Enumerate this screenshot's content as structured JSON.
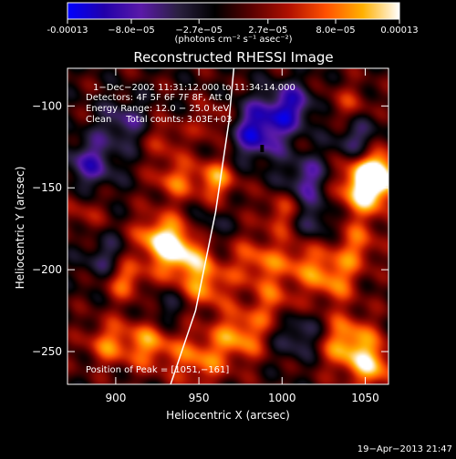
{
  "chart_data": {
    "type": "heatmap",
    "title": "Reconstructed RHESSI Image",
    "xlabel": "Heliocentric X (arcsec)",
    "ylabel": "Heliocentric Y (arcsec)",
    "xlim": [
      871,
      1064
    ],
    "ylim": [
      -270,
      -77
    ],
    "x_ticks": [
      900,
      950,
      1000,
      1050
    ],
    "y_ticks": [
      -100,
      -150,
      -200,
      -250
    ],
    "colorbar": {
      "ticks": [
        "-0.00013",
        "−8.0e−05",
        "−2.7e−05",
        "2.7e−05",
        "8.0e−05",
        "0.00013"
      ],
      "values": [
        -0.00013,
        -8e-05,
        -2.7e-05,
        2.7e-05,
        8e-05,
        0.00013
      ],
      "units_label": "(photons cm⁻² s⁻¹ asec⁻²)",
      "colormap_stops": [
        "#0000ff",
        "#2200aa",
        "#5a1aa8",
        "#2a2040",
        "#000000",
        "#5a0000",
        "#b01000",
        "#ff5000",
        "#ffb000",
        "#ffffff"
      ]
    },
    "annotations": [
      "1−Dec−2002 11:31:12.000 to 11:34:14.000",
      "Detectors: 4F 5F 6F 7F 8F, Att 0",
      "Energy Range: 12.0 − 25.0 keV",
      "Clean     Total counts: 3.03E+03"
    ],
    "peak_label": "Position of Peak = [1051,−161]",
    "peak": [
      1051,
      -161
    ],
    "footer_date": "19−Apr−2013 21:47",
    "blobs": [
      {
        "x": 940,
        "y": -190,
        "amp": 0.9,
        "s": 12
      },
      {
        "x": 925,
        "y": -180,
        "amp": 0.7,
        "s": 10
      },
      {
        "x": 955,
        "y": -210,
        "amp": 0.6,
        "s": 10
      },
      {
        "x": 905,
        "y": -205,
        "amp": 0.7,
        "s": 9
      },
      {
        "x": 895,
        "y": -245,
        "amp": 0.55,
        "s": 10
      },
      {
        "x": 920,
        "y": -245,
        "amp": 0.65,
        "s": 11
      },
      {
        "x": 950,
        "y": -255,
        "amp": 0.6,
        "s": 12
      },
      {
        "x": 975,
        "y": -240,
        "amp": 0.7,
        "s": 11
      },
      {
        "x": 995,
        "y": -220,
        "amp": 0.45,
        "s": 10
      },
      {
        "x": 985,
        "y": -195,
        "amp": 0.55,
        "s": 11
      },
      {
        "x": 1010,
        "y": -195,
        "amp": 0.45,
        "s": 10
      },
      {
        "x": 1030,
        "y": -205,
        "amp": 0.65,
        "s": 11
      },
      {
        "x": 1045,
        "y": -185,
        "amp": 0.5,
        "s": 10
      },
      {
        "x": 1040,
        "y": -245,
        "amp": 0.8,
        "s": 12
      },
      {
        "x": 1055,
        "y": -260,
        "amp": 0.65,
        "s": 10
      },
      {
        "x": 1050,
        "y": -150,
        "amp": 1.0,
        "s": 12
      },
      {
        "x": 1058,
        "y": -140,
        "amp": 0.8,
        "s": 10
      },
      {
        "x": 960,
        "y": -145,
        "amp": 0.7,
        "s": 9
      },
      {
        "x": 935,
        "y": -145,
        "amp": 0.55,
        "s": 9
      },
      {
        "x": 930,
        "y": -120,
        "amp": 0.35,
        "s": 9
      },
      {
        "x": 960,
        "y": -110,
        "amp": 0.4,
        "s": 9
      },
      {
        "x": 1000,
        "y": -165,
        "amp": 0.45,
        "s": 9
      },
      {
        "x": 1040,
        "y": -100,
        "amp": 0.35,
        "s": 10
      },
      {
        "x": 880,
        "y": -165,
        "amp": 0.3,
        "s": 9
      },
      {
        "x": 985,
        "y": -115,
        "amp": -0.85,
        "s": 12
      },
      {
        "x": 1005,
        "y": -100,
        "amp": -0.7,
        "s": 10
      },
      {
        "x": 1015,
        "y": -145,
        "amp": -0.55,
        "s": 10
      },
      {
        "x": 885,
        "y": -135,
        "amp": -0.6,
        "s": 11
      },
      {
        "x": 905,
        "y": -110,
        "amp": -0.45,
        "s": 10
      },
      {
        "x": 1045,
        "y": -120,
        "amp": -0.5,
        "s": 10
      },
      {
        "x": 895,
        "y": -195,
        "amp": -0.45,
        "s": 10
      },
      {
        "x": 1010,
        "y": -240,
        "amp": -0.45,
        "s": 10
      },
      {
        "x": 1020,
        "y": -170,
        "amp": -0.4,
        "s": 9
      },
      {
        "x": 930,
        "y": -225,
        "amp": -0.3,
        "s": 9
      },
      {
        "x": 955,
        "y": -175,
        "amp": -0.35,
        "s": 8
      }
    ],
    "overlay_line": {
      "color": "#ffffff",
      "points": [
        [
          933,
          -270
        ],
        [
          948,
          -225
        ],
        [
          960,
          -165
        ],
        [
          968,
          -110
        ],
        [
          971,
          -77
        ]
      ]
    }
  }
}
